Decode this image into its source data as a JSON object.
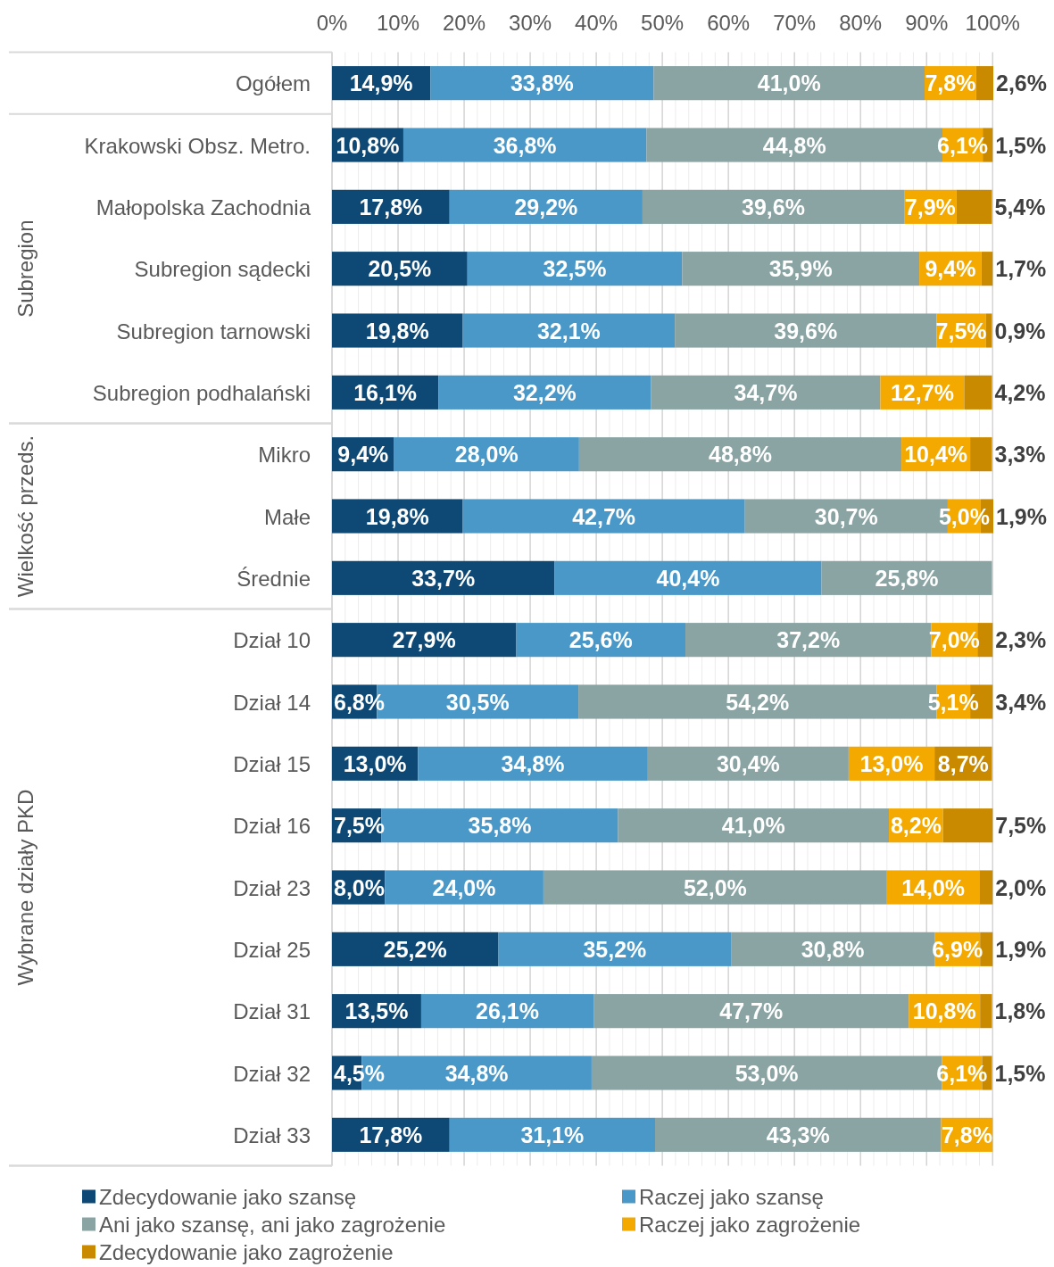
{
  "chart_data": {
    "type": "bar",
    "orientation": "horizontal",
    "stacked": true,
    "categories": [
      "Ogółem",
      "Krakowski Obsz. Metro.",
      "Małopolska Zachodnia",
      "Subregion sądecki",
      "Subregion tarnowski",
      "Subregion podhalański",
      "Mikro",
      "Małe",
      "Średnie",
      "Dział 10",
      "Dział 14",
      "Dział 15",
      "Dział 16",
      "Dział 23",
      "Dział 25",
      "Dział 31",
      "Dział 32",
      "Dział 33"
    ],
    "series": [
      {
        "name": "Zdecydowanie jako szansę",
        "color": "#0e4975",
        "values": [
          14.9,
          10.8,
          17.8,
          20.5,
          19.8,
          16.1,
          9.4,
          19.8,
          33.7,
          27.9,
          6.8,
          13.0,
          7.5,
          8.0,
          25.2,
          13.5,
          4.5,
          17.8
        ],
        "value_labels": [
          "14,9%",
          "10,8%",
          "17,8%",
          "20,5%",
          "19,8%",
          "16,1%",
          "9,4%",
          "19,8%",
          "33,7%",
          "27,9%",
          "6,8%",
          "13,0%",
          "7,5%",
          "8,0%",
          "25,2%",
          "13,5%",
          "4,5%",
          "17,8%"
        ]
      },
      {
        "name": "Raczej jako szansę",
        "color": "#4a98c8",
        "values": [
          33.8,
          36.8,
          29.2,
          32.5,
          32.1,
          32.2,
          28.0,
          42.7,
          40.4,
          25.6,
          30.5,
          34.8,
          35.8,
          24.0,
          35.2,
          26.1,
          34.8,
          31.1
        ],
        "value_labels": [
          "33,8%",
          "36,8%",
          "29,2%",
          "32,5%",
          "32,1%",
          "32,2%",
          "28,0%",
          "42,7%",
          "40,4%",
          "25,6%",
          "30,5%",
          "34,8%",
          "35,8%",
          "24,0%",
          "35,2%",
          "26,1%",
          "34,8%",
          "31,1%"
        ]
      },
      {
        "name": "Ani jako szansę, ani jako zagrożenie",
        "color": "#8aa3a3",
        "values": [
          41.0,
          44.8,
          39.6,
          35.9,
          39.6,
          34.7,
          48.8,
          30.7,
          25.8,
          37.2,
          54.2,
          30.4,
          41.0,
          52.0,
          30.8,
          47.7,
          53.0,
          43.3
        ],
        "value_labels": [
          "41,0%",
          "44,8%",
          "39,6%",
          "35,9%",
          "39,6%",
          "34,7%",
          "48,8%",
          "30,7%",
          "25,8%",
          "37,2%",
          "54,2%",
          "30,4%",
          "41,0%",
          "52,0%",
          "30,8%",
          "47,7%",
          "53,0%",
          "43,3%"
        ]
      },
      {
        "name": "Raczej jako zagrożenie",
        "color": "#f4a900",
        "values": [
          7.8,
          6.1,
          7.9,
          9.4,
          7.5,
          12.7,
          10.4,
          5.0,
          null,
          7.0,
          5.1,
          13.0,
          8.2,
          14.0,
          6.9,
          10.8,
          6.1,
          7.8
        ],
        "value_labels": [
          "7,8%",
          "6,1%",
          "7,9%",
          "9,4%",
          "7,5%",
          "12,7%",
          "10,4%",
          "5,0%",
          null,
          "7,0%",
          "5,1%",
          "13,0%",
          "8,2%",
          "14,0%",
          "6,9%",
          "10,8%",
          "6,1%",
          "7,8%"
        ]
      },
      {
        "name": "Zdecydowanie jako zagrożenie",
        "color": "#c98a00",
        "values": [
          2.6,
          1.5,
          5.4,
          1.7,
          0.9,
          4.2,
          3.3,
          1.9,
          null,
          2.3,
          3.4,
          8.7,
          7.5,
          2.0,
          1.9,
          1.8,
          1.5,
          null
        ],
        "value_labels": [
          "2,6%",
          "1,5%",
          "5,4%",
          "1,7%",
          "0,9%",
          "4,2%",
          "3,3%",
          "1,9%",
          null,
          "2,3%",
          "3,4%",
          "8,7%",
          "7,5%",
          "2,0%",
          "1,9%",
          "1,8%",
          "1,5%",
          null
        ]
      }
    ],
    "xlim": [
      0,
      100.1
    ],
    "xticks": [
      {
        "value": 0,
        "label": "0%"
      },
      {
        "value": 2,
        "label": null
      },
      {
        "value": 4,
        "label": null
      },
      {
        "value": 6,
        "label": null
      },
      {
        "value": 8,
        "label": null
      },
      {
        "value": 10,
        "label": "10%"
      },
      {
        "value": 12,
        "label": null
      },
      {
        "value": 14,
        "label": null
      },
      {
        "value": 16,
        "label": null
      },
      {
        "value": 18,
        "label": null
      },
      {
        "value": 20,
        "label": "20%"
      },
      {
        "value": 22,
        "label": null
      },
      {
        "value": 24,
        "label": null
      },
      {
        "value": 26,
        "label": null
      },
      {
        "value": 28,
        "label": null
      },
      {
        "value": 30,
        "label": "30%"
      },
      {
        "value": 32,
        "label": null
      },
      {
        "value": 34,
        "label": null
      },
      {
        "value": 36,
        "label": null
      },
      {
        "value": 38,
        "label": null
      },
      {
        "value": 40,
        "label": "40%"
      },
      {
        "value": 42,
        "label": null
      },
      {
        "value": 44,
        "label": null
      },
      {
        "value": 46,
        "label": null
      },
      {
        "value": 48,
        "label": null
      },
      {
        "value": 50,
        "label": "50%"
      },
      {
        "value": 52,
        "label": null
      },
      {
        "value": 54,
        "label": null
      },
      {
        "value": 56,
        "label": null
      },
      {
        "value": 58,
        "label": null
      },
      {
        "value": 60,
        "label": "60%"
      },
      {
        "value": 62,
        "label": null
      },
      {
        "value": 64,
        "label": null
      },
      {
        "value": 66,
        "label": null
      },
      {
        "value": 68,
        "label": null
      },
      {
        "value": 70,
        "label": "70%"
      },
      {
        "value": 72,
        "label": null
      },
      {
        "value": 74,
        "label": null
      },
      {
        "value": 76,
        "label": null
      },
      {
        "value": 78,
        "label": null
      },
      {
        "value": 80,
        "label": "80%"
      },
      {
        "value": 82,
        "label": null
      },
      {
        "value": 84,
        "label": null
      },
      {
        "value": 86,
        "label": null
      },
      {
        "value": 88,
        "label": null
      },
      {
        "value": 90,
        "label": "90%"
      },
      {
        "value": 92,
        "label": null
      },
      {
        "value": 94,
        "label": null
      },
      {
        "value": 96,
        "label": null
      },
      {
        "value": 98,
        "label": null
      },
      {
        "value": 100,
        "label": "100%"
      }
    ],
    "grid": "x",
    "legend": "bottom",
    "annotations": [
      "Subregion",
      "Wielkość przeds.",
      "Wybrane działy PKD"
    ]
  }
}
